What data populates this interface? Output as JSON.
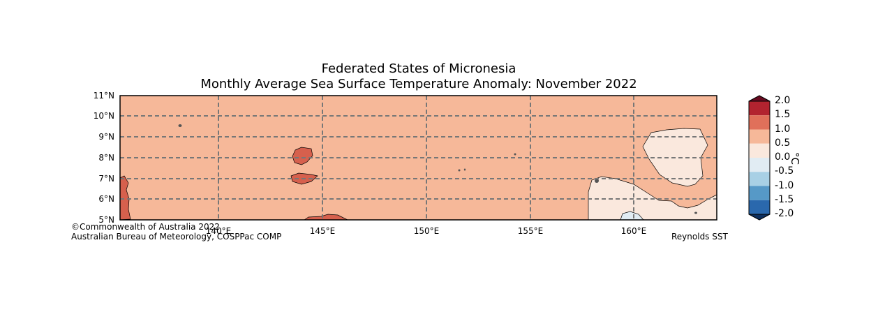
{
  "title_line1": "Federated States of Micronesia",
  "title_line2": "Monthly Average Sea Surface Temperature Anomaly: November 2022",
  "lat_labels": [
    "11°N",
    "10°N",
    "9°N",
    "8°N",
    "7°N",
    "6°N",
    "5°N"
  ],
  "lon_labels": [
    "140°E",
    "145°E",
    "150°E",
    "155°E",
    "160°E"
  ],
  "credit_line1": "©Commonwealth of Australia 2022",
  "credit_line2": "Australian Bureau of Meteorology, COSPPac COMP",
  "source": "Reynolds SST",
  "colorbar": {
    "units": "°C",
    "ticks": [
      "2.0",
      "1.5",
      "1.0",
      "0.5",
      "0.0",
      "-0.5",
      "-1.0",
      "-1.5",
      "-2.0"
    ],
    "colors": [
      "#b2232f",
      "#e0705a",
      "#f6b899",
      "#fae8dd",
      "#e1ecf3",
      "#a8d0e5",
      "#5699c7",
      "#2a68ad"
    ],
    "over_color": "#670a20",
    "under_color": "#0d2f5f"
  },
  "map": {
    "background_anomaly_band": "0.5 to 1.0",
    "ocean_color": "#f6b899",
    "warm_patch_color": "#d6604d",
    "cool_patch_color": "#fae8dd",
    "negative_patch_color": "#e1ecf3"
  }
}
